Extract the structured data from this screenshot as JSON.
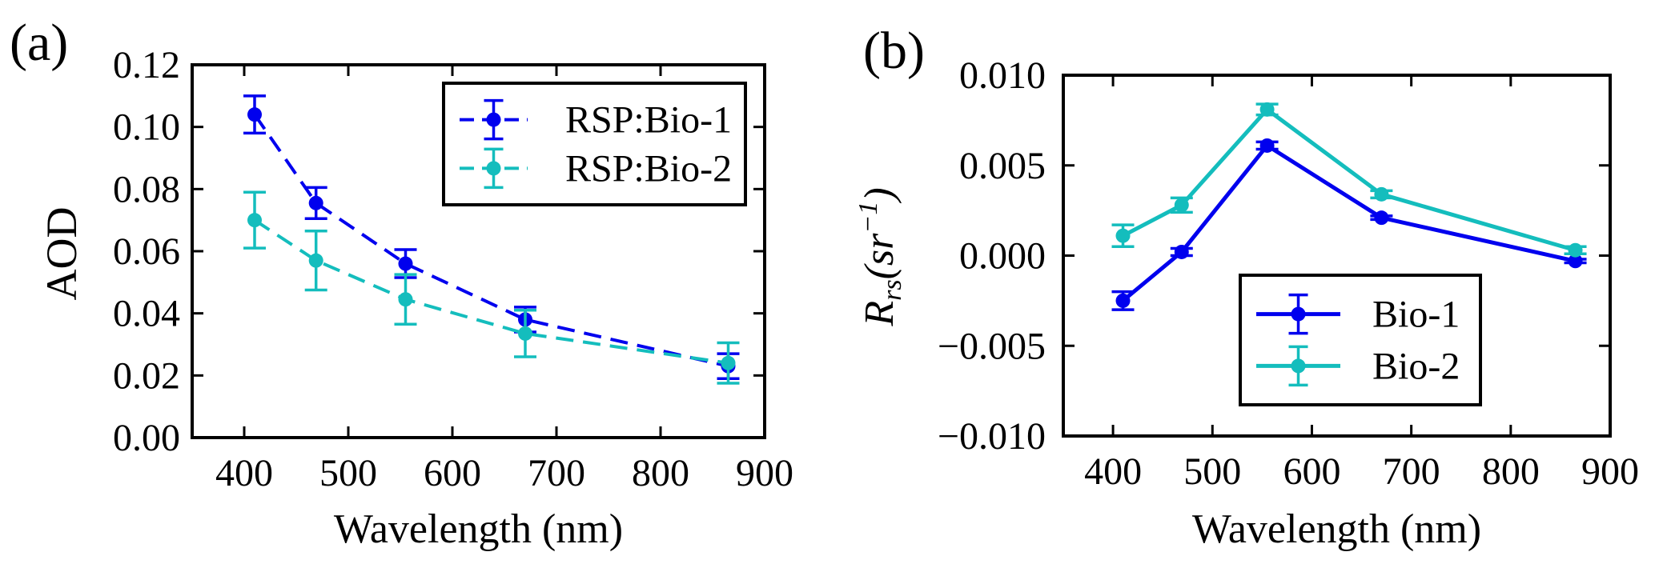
{
  "chart_data": [
    {
      "type": "line",
      "panel_label": "(a)",
      "title": "",
      "xlabel": "Wavelength (nm)",
      "ylabel": "AOD",
      "xlim": [
        350,
        900
      ],
      "ylim": [
        0.0,
        0.12
      ],
      "xticks": [
        400,
        500,
        600,
        700,
        800,
        900
      ],
      "yticks": [
        0.0,
        0.02,
        0.04,
        0.06,
        0.08,
        0.1,
        0.12
      ],
      "ytick_labels": [
        "0.00",
        "0.02",
        "0.04",
        "0.06",
        "0.08",
        "0.10",
        "0.12"
      ],
      "xtick_labels": [
        "400",
        "500",
        "600",
        "700",
        "800",
        "900"
      ],
      "legend_position": "top-right",
      "line_style": "dashed",
      "x": [
        410,
        469,
        555,
        670,
        865
      ],
      "series": [
        {
          "name": "RSP:Bio-1",
          "color": "#0000ee",
          "values": [
            0.104,
            0.0755,
            0.056,
            0.038,
            0.023
          ],
          "errors": [
            0.006,
            0.005,
            0.0045,
            0.004,
            0.004
          ]
        },
        {
          "name": "RSP:Bio-2",
          "color": "#14bdbd",
          "values": [
            0.07,
            0.057,
            0.0445,
            0.0335,
            0.024
          ],
          "errors": [
            0.009,
            0.0095,
            0.008,
            0.0075,
            0.0065
          ]
        }
      ]
    },
    {
      "type": "line",
      "panel_label": "(b)",
      "title": "",
      "xlabel": "Wavelength (nm)",
      "ylabel": "R_rs (sr^-1)",
      "ylabel_main": "R",
      "ylabel_sub": "rs",
      "ylabel_paren": "(sr",
      "ylabel_sup": "−1",
      "ylabel_close": ")",
      "xlim": [
        350,
        900
      ],
      "ylim": [
        -0.01,
        0.01
      ],
      "xticks": [
        400,
        500,
        600,
        700,
        800,
        900
      ],
      "yticks": [
        -0.01,
        -0.005,
        0.0,
        0.005,
        0.01
      ],
      "ytick_labels": [
        "−0.010",
        "−0.005",
        "0.000",
        "0.005",
        "0.010"
      ],
      "xtick_labels": [
        "400",
        "500",
        "600",
        "700",
        "800",
        "900"
      ],
      "legend_position": "lower-center",
      "line_style": "solid",
      "x": [
        410,
        469,
        555,
        670,
        865
      ],
      "series": [
        {
          "name": "Bio-1",
          "color": "#0000ee",
          "values": [
            -0.0025,
            0.0002,
            0.0061,
            0.0021,
            -0.0003
          ],
          "errors": [
            0.0005,
            0.0002,
            0.0002,
            0.0001,
            0.0001
          ]
        },
        {
          "name": "Bio-2",
          "color": "#14bdbd",
          "values": [
            0.0011,
            0.0028,
            0.0081,
            0.0034,
            0.0003
          ],
          "errors": [
            0.0006,
            0.0004,
            0.0003,
            0.0002,
            0.0002
          ]
        }
      ]
    }
  ]
}
